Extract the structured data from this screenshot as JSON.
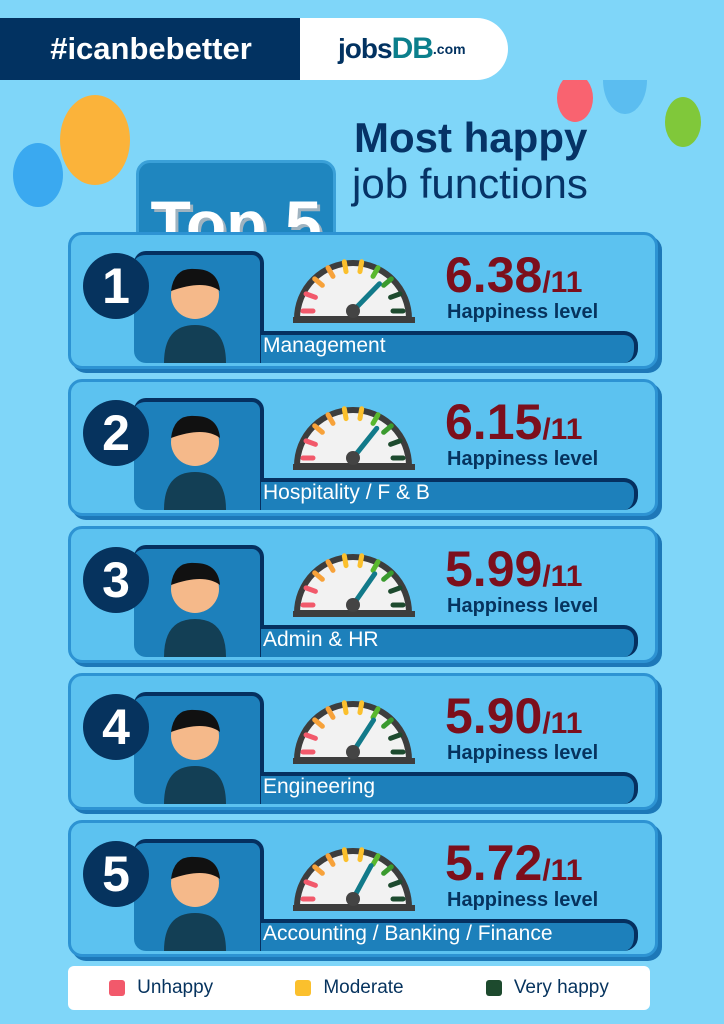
{
  "header": {
    "hashtag": "#icanbebetter",
    "logo": {
      "jobs": "jobs",
      "db": "DB",
      "com": ".com"
    }
  },
  "title": {
    "badge": "Top 5",
    "line1": "Most happy",
    "line2": "job functions"
  },
  "items": [
    {
      "rank": "1",
      "function": "Management",
      "score": "6.38",
      "max": "/11",
      "value": 6.38,
      "caption": "Happiness level"
    },
    {
      "rank": "2",
      "function": "Hospitality / F & B",
      "score": "6.15",
      "max": "/11",
      "value": 6.15,
      "caption": "Happiness level"
    },
    {
      "rank": "3",
      "function": "Admin & HR",
      "score": "5.99",
      "max": "/11",
      "value": 5.99,
      "caption": "Happiness level"
    },
    {
      "rank": "4",
      "function": "Engineering",
      "score": "5.90",
      "max": "/11",
      "value": 5.9,
      "caption": "Happiness level"
    },
    {
      "rank": "5",
      "function": "Accounting / Banking / Finance",
      "score": "5.72",
      "max": "/11",
      "value": 5.72,
      "caption": "Happiness level"
    }
  ],
  "legend": [
    {
      "label": "Unhappy",
      "color": "#f2596b"
    },
    {
      "label": "Moderate",
      "color": "#fbc02d"
    },
    {
      "label": "Very happy",
      "color": "#1d4a2e"
    }
  ],
  "colors": {
    "background": "#7fd6f9",
    "navy": "#023261",
    "score": "#7c0f1c",
    "card": "#5cc2f0"
  }
}
